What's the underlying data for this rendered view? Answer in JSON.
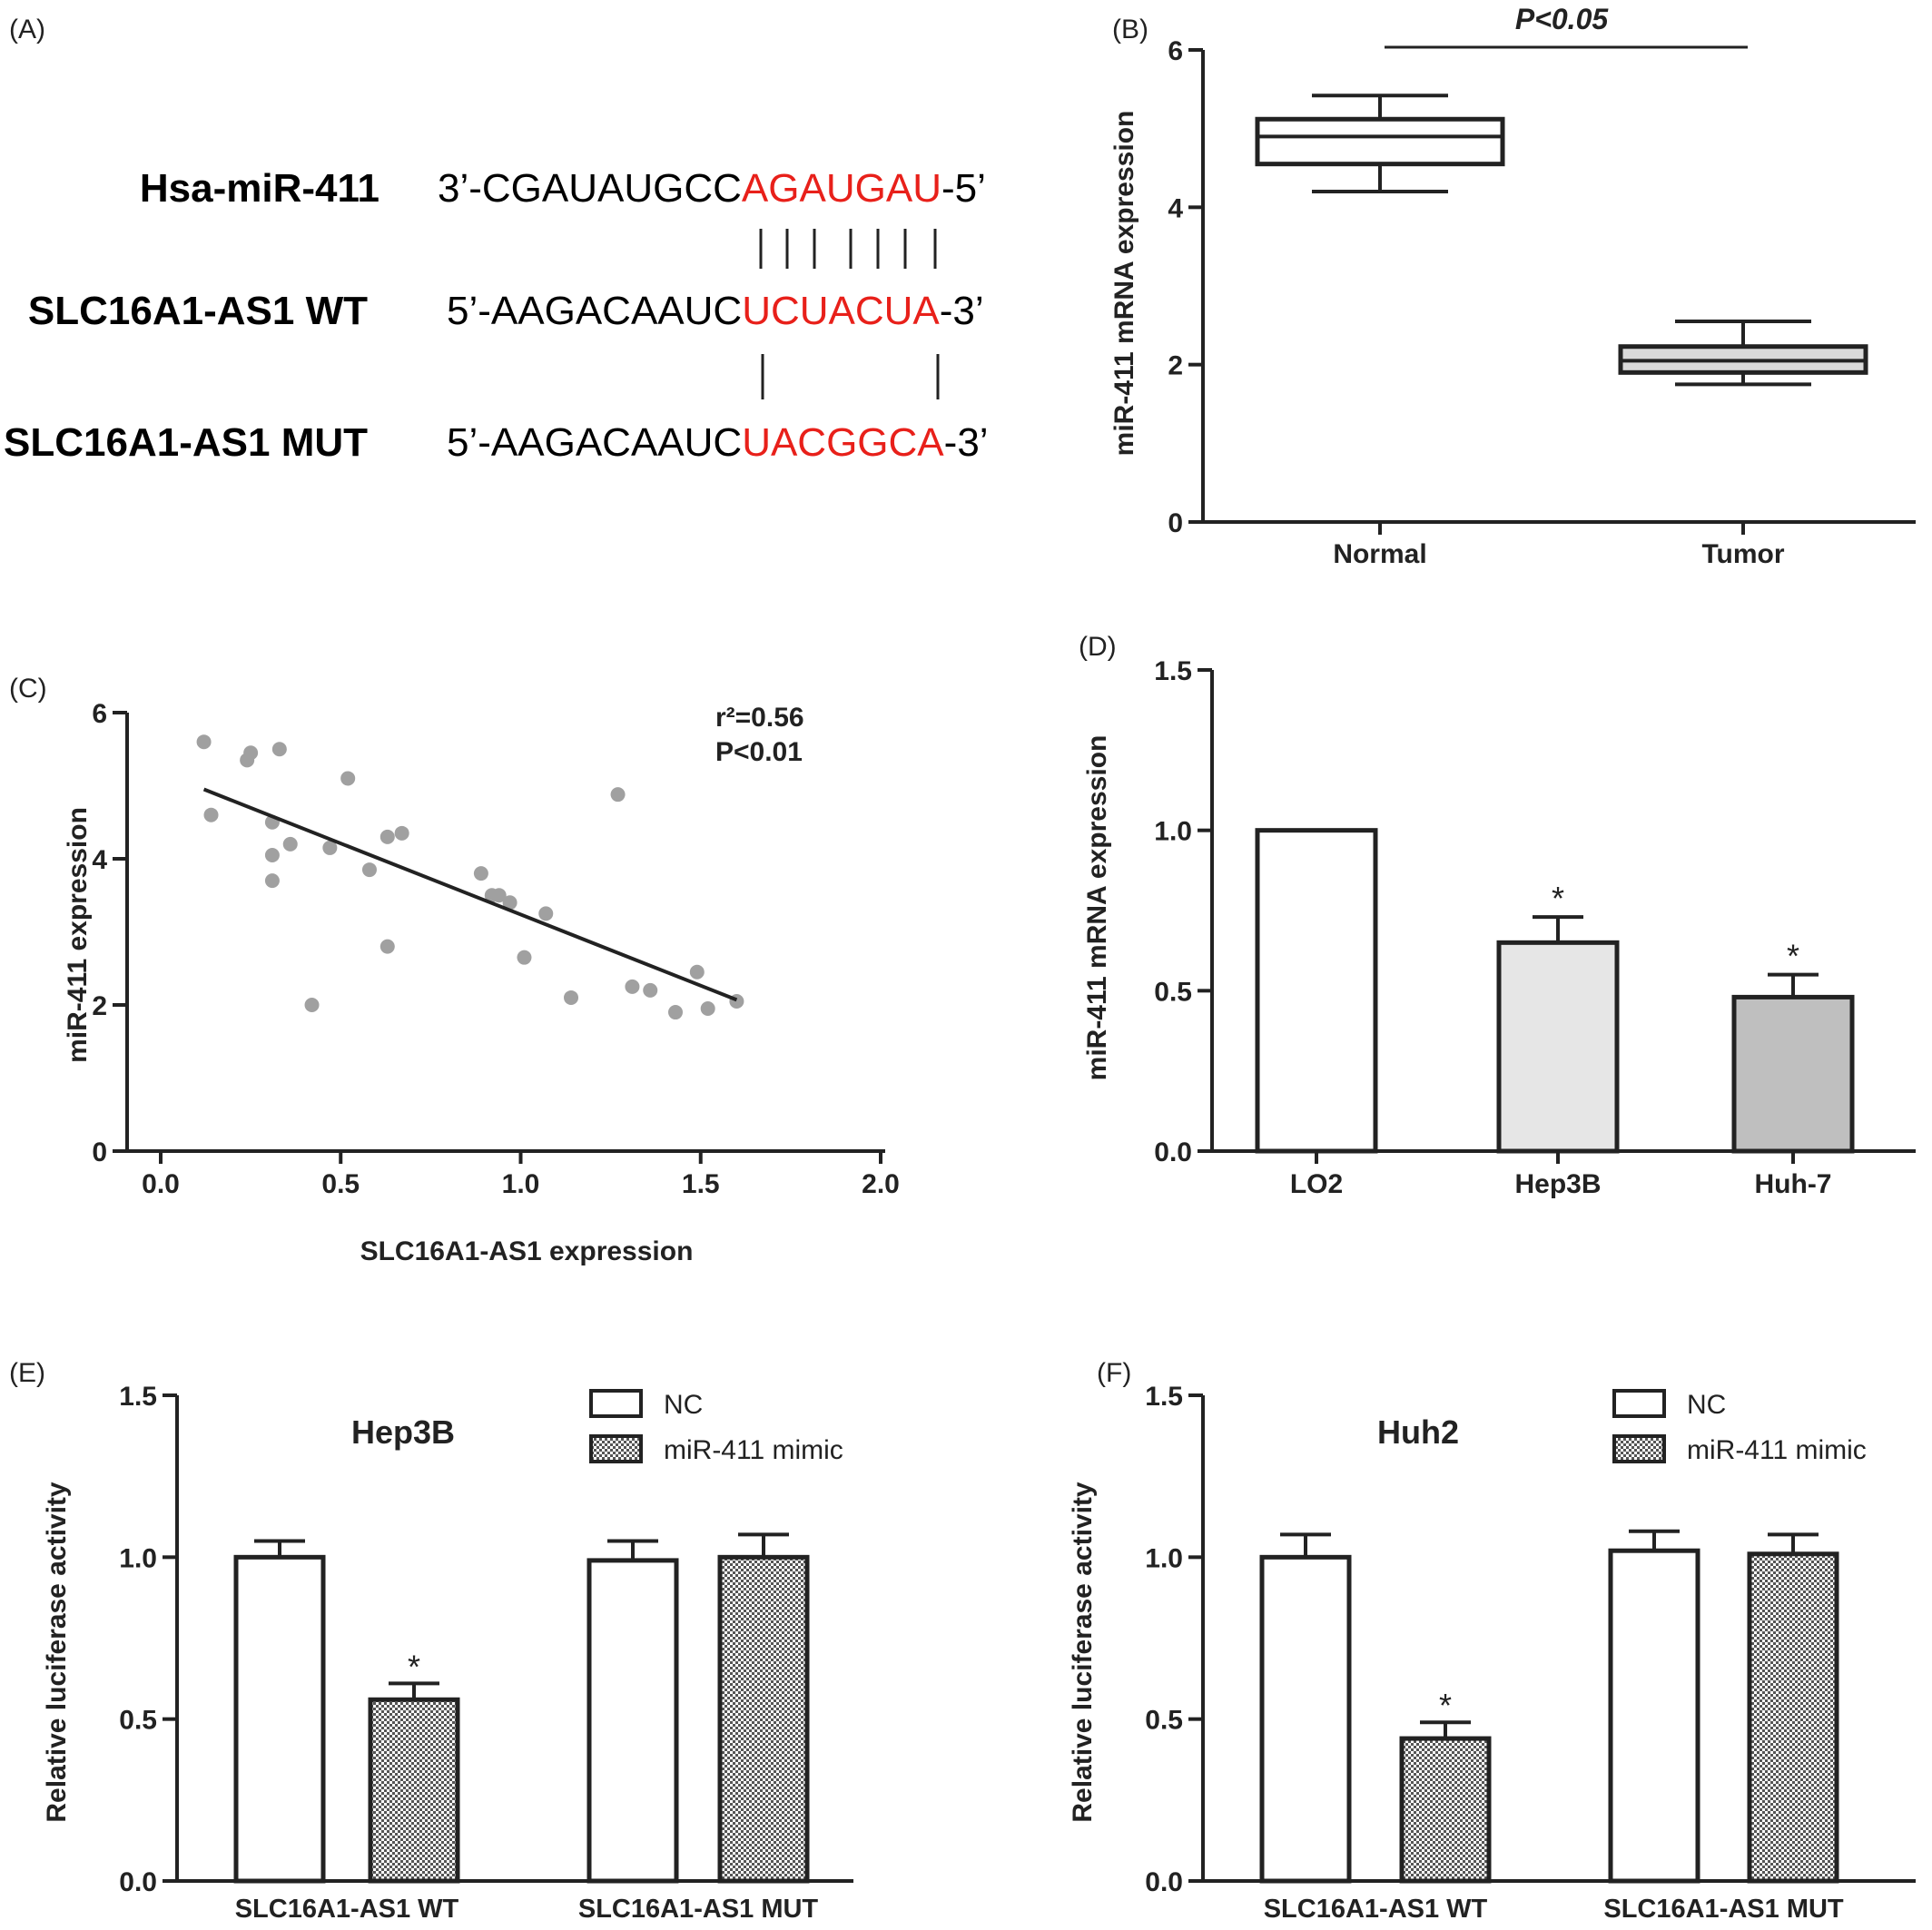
{
  "panels": {
    "A": {
      "label": "(A)",
      "rows": [
        {
          "name": "Hsa-miR-411",
          "prefix": "3’-CGAUAUGCC",
          "highlight": "AGAUGAU",
          "suffix": "-5’"
        },
        {
          "name": "SLC16A1-AS1 WT",
          "prefix": "5’-AAGACAAUC",
          "highlight": "UCUACUA",
          "suffix": "-3’"
        },
        {
          "name": "SLC16A1-AS1 MUT",
          "prefix": "5’-AAGACAAUC",
          "highlight": "UACGGCA",
          "suffix": "-3’"
        }
      ],
      "highlight_color": "#e8201a"
    },
    "B": {
      "label": "(B)",
      "significance": "P<0.05"
    },
    "C": {
      "label": "(C)",
      "stats": [
        "r²=0.56",
        "P<0.01"
      ]
    },
    "D": {
      "label": "(D)"
    },
    "E": {
      "label": "(E)"
    },
    "F": {
      "label": "(F)"
    }
  },
  "chart_data": [
    {
      "id": "B",
      "type": "box",
      "ylabel": "miR-411 mRNA expression",
      "categories": [
        "Normal",
        "Tumor"
      ],
      "boxes": [
        {
          "min": 4.2,
          "q1": 4.55,
          "median": 4.9,
          "q3": 5.12,
          "max": 5.42,
          "fill": "#ffffff"
        },
        {
          "min": 1.75,
          "q1": 1.9,
          "median": 2.05,
          "q3": 2.23,
          "max": 2.55,
          "fill": "#d9d9d9"
        }
      ],
      "ylim": [
        0,
        6
      ],
      "yticks": [
        "0",
        "2",
        "4",
        "6"
      ]
    },
    {
      "id": "C",
      "type": "scatter",
      "xlabel": "SLC16A1-AS1 expression",
      "ylabel": "miR-411 expression",
      "xlim": [
        0,
        2
      ],
      "ylim": [
        0,
        6
      ],
      "xticks": [
        "0.0",
        "0.5",
        "1.0",
        "1.5",
        "2.0"
      ],
      "yticks": [
        "0",
        "2",
        "4",
        "6"
      ],
      "points": [
        [
          0.12,
          5.6
        ],
        [
          0.14,
          4.6
        ],
        [
          0.24,
          5.35
        ],
        [
          0.25,
          5.45
        ],
        [
          0.33,
          5.5
        ],
        [
          0.31,
          4.5
        ],
        [
          0.31,
          4.05
        ],
        [
          0.31,
          3.7
        ],
        [
          0.36,
          4.2
        ],
        [
          0.42,
          2.0
        ],
        [
          0.47,
          4.15
        ],
        [
          0.52,
          5.1
        ],
        [
          0.58,
          3.85
        ],
        [
          0.63,
          4.3
        ],
        [
          0.67,
          4.35
        ],
        [
          0.63,
          2.8
        ],
        [
          0.89,
          3.8
        ],
        [
          0.92,
          3.5
        ],
        [
          0.94,
          3.5
        ],
        [
          0.97,
          3.4
        ],
        [
          1.01,
          2.65
        ],
        [
          1.07,
          3.25
        ],
        [
          1.14,
          2.1
        ],
        [
          1.27,
          4.88
        ],
        [
          1.31,
          2.25
        ],
        [
          1.36,
          2.2
        ],
        [
          1.43,
          1.9
        ],
        [
          1.49,
          2.45
        ],
        [
          1.52,
          1.95
        ],
        [
          1.6,
          2.05
        ]
      ],
      "fit": {
        "x0": 0.12,
        "y0": 4.95,
        "x1": 1.6,
        "y1": 2.07
      }
    },
    {
      "id": "D",
      "type": "bar",
      "ylabel": "miR-411 mRNA expression",
      "categories": [
        "LO2",
        "Hep3B",
        "Huh-7"
      ],
      "values": [
        1.0,
        0.65,
        0.48
      ],
      "errors": [
        0,
        0.08,
        0.07
      ],
      "significance": [
        "",
        "*",
        "*"
      ],
      "colors": [
        "#ffffff",
        "#e6e6e6",
        "#bfbfbf"
      ],
      "ylim": [
        0,
        1.5
      ],
      "yticks": [
        "0.0",
        "0.5",
        "1.0",
        "1.5"
      ]
    },
    {
      "id": "E",
      "type": "bar",
      "title": "Hep3B",
      "ylabel": "Relative luciferase activity",
      "categories": [
        "SLC16A1-AS1 WT",
        "SLC16A1-AS1 MUT"
      ],
      "series": [
        {
          "name": "NC",
          "values": [
            1.0,
            0.99
          ],
          "errors": [
            0.05,
            0.06
          ],
          "significance": [
            "",
            ""
          ],
          "pattern": "none"
        },
        {
          "name": "miR-411 mimic",
          "values": [
            0.56,
            1.0
          ],
          "errors": [
            0.05,
            0.07
          ],
          "significance": [
            "*",
            ""
          ],
          "pattern": "checker"
        }
      ],
      "ylim": [
        0,
        1.5
      ],
      "yticks": [
        "0.0",
        "0.5",
        "1.0",
        "1.5"
      ],
      "legend": "top-right"
    },
    {
      "id": "F",
      "type": "bar",
      "title": "Huh2",
      "ylabel": "Relative luciferase activity",
      "categories": [
        "SLC16A1-AS1 WT",
        "SLC16A1-AS1 MUT"
      ],
      "series": [
        {
          "name": "NC",
          "values": [
            1.0,
            1.02
          ],
          "errors": [
            0.07,
            0.06
          ],
          "significance": [
            "",
            ""
          ],
          "pattern": "none"
        },
        {
          "name": "miR-411 mimic",
          "values": [
            0.44,
            1.01
          ],
          "errors": [
            0.05,
            0.06
          ],
          "significance": [
            "*",
            ""
          ],
          "pattern": "checker"
        }
      ],
      "ylim": [
        0,
        1.5
      ],
      "yticks": [
        "0.0",
        "0.5",
        "1.0",
        "1.5"
      ],
      "legend": "top-right"
    }
  ]
}
